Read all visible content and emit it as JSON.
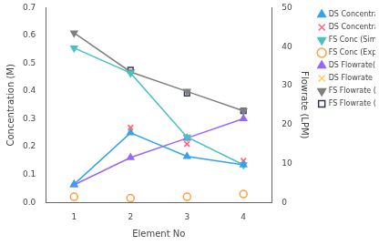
{
  "chart_data": {
    "type": "line",
    "xlabel": "Element No",
    "ylabel": "Concentration (M)",
    "y2label": "Flowrate (LPM)",
    "x": [
      1,
      2,
      3,
      4
    ],
    "xlim": [
      0.5,
      4.5
    ],
    "xticks": [
      1,
      2,
      3,
      4
    ],
    "ylim": [
      0,
      0.7
    ],
    "yticks": [
      {
        "value": 0.0,
        "label": "0.0"
      },
      0.1,
      0.2,
      0.3,
      0.4,
      0.5,
      0.6,
      0.7
    ],
    "y2lim": [
      0,
      50
    ],
    "y2ticks": [
      0,
      10,
      20,
      30,
      40,
      50
    ],
    "grid": false,
    "legend": "right",
    "series": [
      {
        "name": "DS Concentration (Sim)",
        "values": [
          0.065,
          0.25,
          0.165,
          0.135
        ],
        "marker": "triangle_up",
        "line_style": "solid"
      },
      {
        "name": "DS Concentration (Expt)",
        "x": [
          2,
          3,
          4
        ],
        "values": [
          0.27,
          0.21,
          0.15
        ],
        "marker": "x",
        "line_style": "none"
      },
      {
        "name": "FS Conc (Sim)",
        "values": [
          0.555,
          0.465,
          0.235,
          0.135
        ],
        "marker": "triangle_down",
        "line_style": "solid"
      },
      {
        "name": "FS Conc (Expt)",
        "values": [
          0.02,
          0.015,
          0.02,
          0.03
        ],
        "marker": "circle_open",
        "line_style": "none"
      },
      {
        "name": "DS Flowrate(Sim)",
        "values": [
          4.5,
          11.5,
          16.5,
          21.5
        ],
        "marker": "triangle_up",
        "line_style": "solid",
        "axis": "y2"
      },
      {
        "name": "DS Flowrate (Expt)",
        "x": [
          2,
          3,
          4
        ],
        "values": [
          19.0,
          15.0,
          10.5
        ],
        "marker": "x",
        "line_style": "none",
        "axis": "y2"
      },
      {
        "name": "FS Flowrate (Sim)",
        "values": [
          43.5,
          33.5,
          28.5,
          23.5
        ],
        "marker": "triangle_down",
        "line_style": "solid",
        "axis": "y2"
      },
      {
        "name": "FS Flowrate (Expt)",
        "x": [
          2,
          3,
          4
        ],
        "values": [
          34.0,
          28.0,
          23.5
        ],
        "marker": "square_open",
        "line_style": "none",
        "axis": "y2"
      }
    ]
  }
}
